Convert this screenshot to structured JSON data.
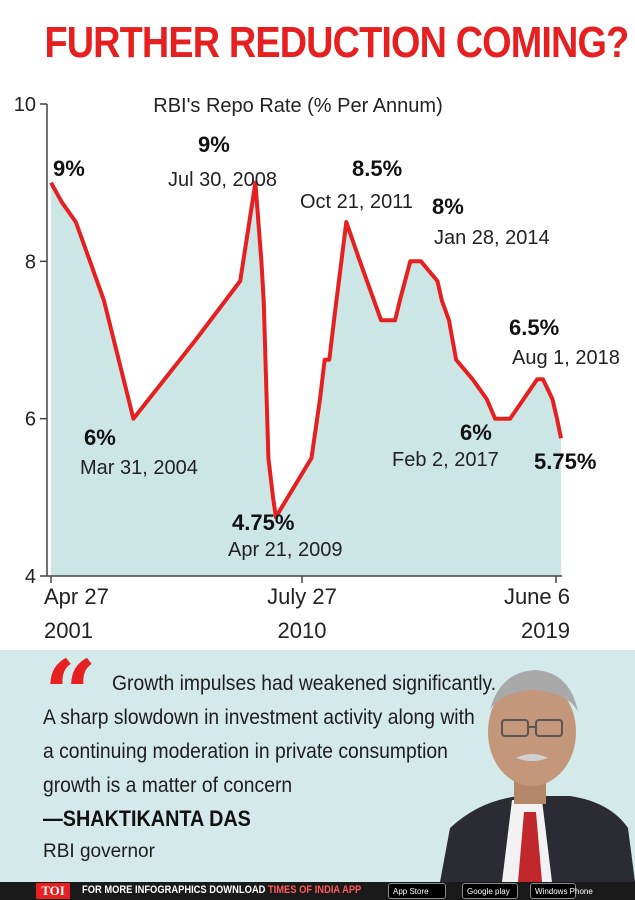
{
  "headline": "FURTHER REDUCTION COMING?",
  "colors": {
    "accent": "#e62020",
    "area_fill": "#cce6e6",
    "panel_bg": "#d4e9e9",
    "footer_bg": "#1a1a1a"
  },
  "chart_data": {
    "type": "line",
    "title": "RBI's Repo Rate (% Per Annum)",
    "xlabel": "",
    "ylabel": "",
    "ylim": [
      4,
      10
    ],
    "y_ticks": [
      "4",
      "6",
      "8",
      "10"
    ],
    "x_ticks": [
      {
        "line1": "Apr 27",
        "line2": "2001"
      },
      {
        "line1": "July 27",
        "line2": "2010"
      },
      {
        "line1": "June 6",
        "line2": "2019"
      }
    ],
    "series": [
      {
        "x": [
          "2001-04-27",
          "2001-09",
          "2002-03",
          "2002-09",
          "2003-03",
          "2004-03-31",
          "2006-06",
          "2008-01",
          "2008-07-30",
          "2008-10",
          "2008-11",
          "2009-01",
          "2009-03",
          "2009-04-21",
          "2010-07-27",
          "2010-11",
          "2011-01",
          "2011-03",
          "2011-05",
          "2011-10-21",
          "2012-04",
          "2013-01",
          "2013-05",
          "2013-07",
          "2013-09",
          "2014-01-28",
          "2014-06",
          "2015-01",
          "2015-03",
          "2015-06",
          "2015-09",
          "2016-04",
          "2016-10",
          "2017-02-02",
          "2017-08",
          "2018-08-01",
          "2018-10",
          "2019-02",
          "2019-04",
          "2019-06-06"
        ],
        "values": [
          9.0,
          8.75,
          8.5,
          8.0,
          7.5,
          6.0,
          7.0,
          7.75,
          9.0,
          8.0,
          7.5,
          5.5,
          5.0,
          4.75,
          5.5,
          6.25,
          6.75,
          6.75,
          7.25,
          8.5,
          8.0,
          7.25,
          7.25,
          7.25,
          7.5,
          8.0,
          8.0,
          7.75,
          7.5,
          7.25,
          6.75,
          6.5,
          6.25,
          6.0,
          6.0,
          6.5,
          6.5,
          6.25,
          6.0,
          5.75
        ]
      }
    ],
    "annotations": [
      {
        "value": "9%",
        "date": ""
      },
      {
        "value": "6%",
        "date": "Mar 31, 2004"
      },
      {
        "value": "9%",
        "date": "Jul 30, 2008"
      },
      {
        "value": "4.75%",
        "date": "Apr 21, 2009"
      },
      {
        "value": "8.5%",
        "date": "Oct 21, 2011"
      },
      {
        "value": "8%",
        "date": "Jan 28, 2014"
      },
      {
        "value": "6%",
        "date": "Feb 2, 2017"
      },
      {
        "value": "6.5%",
        "date": "Aug 1, 2018"
      },
      {
        "value": "5.75%",
        "date": ""
      }
    ],
    "grid": false
  },
  "quote": {
    "lines": [
      "Growth impulses had weakened significantly.",
      "A sharp slowdown in investment activity along with",
      "a continuing moderation in private consumption",
      "growth is a matter of concern"
    ],
    "speaker": "—SHAKTIKANTA DAS",
    "role": "RBI governor"
  },
  "footer": {
    "brand": "TOI",
    "text_prefix": "FOR MORE  INFOGRAPHICS DOWNLOAD ",
    "text_highlight": "TIMES OF INDIA  APP",
    "badges": [
      "App Store",
      "Google play",
      "Windows Phone"
    ]
  }
}
